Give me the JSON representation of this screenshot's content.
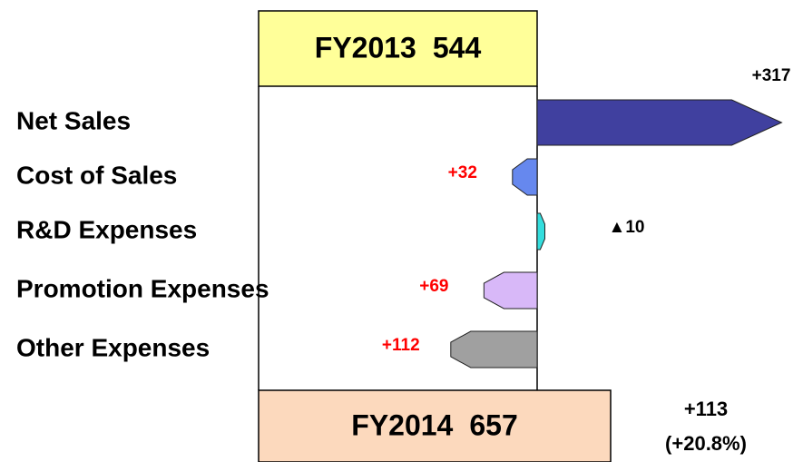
{
  "chart_data": {
    "type": "bridge",
    "start": {
      "label": "FY2013",
      "value": 544,
      "color": "#ffff99"
    },
    "end": {
      "label": "FY2014",
      "value": 657,
      "color": "#fcd9bd"
    },
    "categories": [
      "Net Sales",
      "Cost of Sales",
      "R&D Expenses",
      "Promotion Expenses",
      "Other Expenses"
    ],
    "values": [
      317,
      -32,
      10,
      -69,
      -112
    ],
    "value_labels": [
      "+317",
      "+32",
      "▲10",
      "+69",
      "+112"
    ],
    "colors": [
      "#40409f",
      "#6688ee",
      "#33dddd",
      "#d8b8f8",
      "#a0a0a0"
    ],
    "total_change": {
      "value": 113,
      "label": "+113"
    },
    "total_change_pct": {
      "value": 20.8,
      "label": "(+20.8%)"
    }
  }
}
